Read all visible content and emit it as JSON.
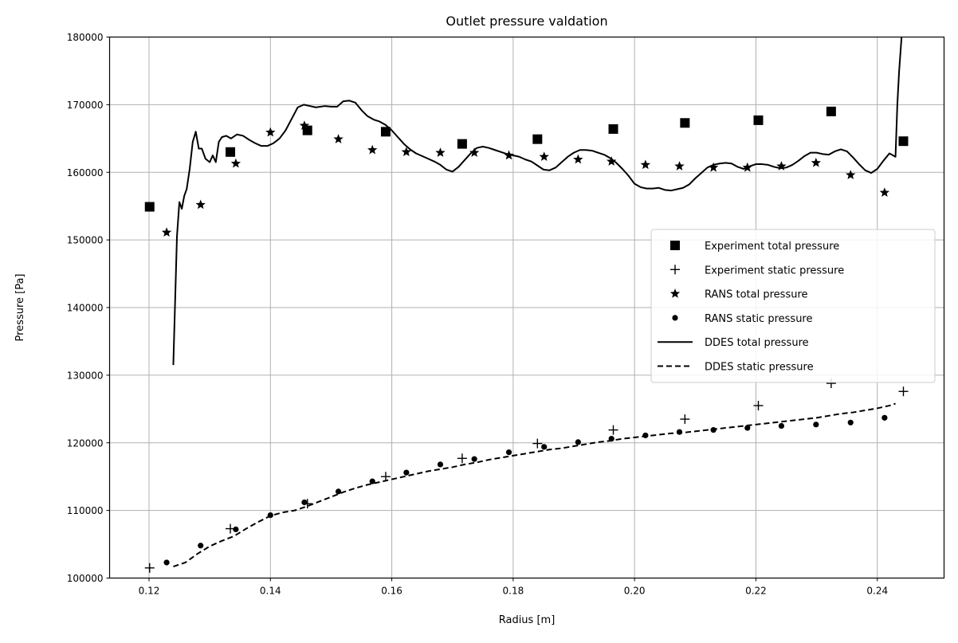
{
  "chart_data": {
    "type": "line",
    "title": "Outlet pressure valdation",
    "xlabel": "Radius [m]",
    "ylabel": "Pressure [Pa]",
    "xlim": [
      0.1135,
      0.251
    ],
    "ylim": [
      100000,
      180000
    ],
    "xticks": [
      0.12,
      0.14,
      0.16,
      0.18,
      0.2,
      0.22,
      0.24
    ],
    "xtick_labels": [
      "0.12",
      "0.14",
      "0.16",
      "0.18",
      "0.20",
      "0.22",
      "0.24"
    ],
    "yticks": [
      100000,
      110000,
      120000,
      130000,
      140000,
      150000,
      160000,
      170000,
      180000
    ],
    "ytick_labels": [
      "100000",
      "110000",
      "120000",
      "130000",
      "140000",
      "150000",
      "160000",
      "170000",
      "180000"
    ],
    "grid": true,
    "legend_position": "center-right",
    "series": [
      {
        "name": "Experiment total pressure",
        "marker": "square",
        "line": "none",
        "color": "#000000",
        "x": [
          0.1201,
          0.1334,
          0.1461,
          0.159,
          0.1716,
          0.184,
          0.1965,
          0.2083,
          0.2204,
          0.2324,
          0.2443
        ],
        "y": [
          154900,
          163000,
          166200,
          166000,
          164200,
          164900,
          166400,
          167300,
          167700,
          169000,
          164600
        ]
      },
      {
        "name": "Experiment static pressure",
        "marker": "plus",
        "line": "none",
        "color": "#000000",
        "x": [
          0.1201,
          0.1334,
          0.1461,
          0.159,
          0.1716,
          0.184,
          0.1965,
          0.2083,
          0.2204,
          0.2324,
          0.2443
        ],
        "y": [
          101500,
          107300,
          111000,
          115000,
          117700,
          119900,
          121900,
          123500,
          125500,
          128800,
          127600
        ]
      },
      {
        "name": "RANS total pressure",
        "marker": "star",
        "line": "none",
        "color": "#000000",
        "x": [
          0.1229,
          0.1285,
          0.1343,
          0.14,
          0.1456,
          0.1512,
          0.1568,
          0.1624,
          0.168,
          0.1736,
          0.1793,
          0.1851,
          0.1907,
          0.1962,
          0.2018,
          0.2074,
          0.213,
          0.2186,
          0.2242,
          0.2299,
          0.2356,
          0.2412
        ],
        "y": [
          151100,
          155200,
          161300,
          165900,
          166900,
          164900,
          163300,
          163000,
          162900,
          162900,
          162500,
          162300,
          161900,
          161600,
          161100,
          160900,
          160700,
          160700,
          160900,
          161400,
          159600,
          157000
        ]
      },
      {
        "name": "RANS static pressure",
        "marker": "dot",
        "line": "none",
        "color": "#000000",
        "x": [
          0.1229,
          0.1285,
          0.1343,
          0.14,
          0.1456,
          0.1512,
          0.1568,
          0.1624,
          0.168,
          0.1736,
          0.1793,
          0.1851,
          0.1907,
          0.1962,
          0.2018,
          0.2074,
          0.213,
          0.2186,
          0.2242,
          0.2299,
          0.2356,
          0.2412
        ],
        "y": [
          102300,
          104800,
          107200,
          109300,
          111200,
          112800,
          114300,
          115600,
          116800,
          117600,
          118600,
          119400,
          120100,
          120600,
          121100,
          121600,
          121900,
          122200,
          122500,
          122700,
          123000,
          123700
        ]
      },
      {
        "name": "DDES total pressure",
        "marker": "none",
        "line": "solid",
        "color": "#000000",
        "x": [
          0.124,
          0.1243,
          0.1246,
          0.125,
          0.1254,
          0.1258,
          0.1262,
          0.1267,
          0.1272,
          0.1277,
          0.1282,
          0.1287,
          0.1293,
          0.13,
          0.1305,
          0.131,
          0.1315,
          0.132,
          0.1327,
          0.1335,
          0.1345,
          0.1355,
          0.1365,
          0.1375,
          0.1385,
          0.1395,
          0.1405,
          0.1415,
          0.1425,
          0.1435,
          0.1445,
          0.1455,
          0.1465,
          0.1475,
          0.149,
          0.15,
          0.151,
          0.152,
          0.153,
          0.154,
          0.155,
          0.156,
          0.157,
          0.158,
          0.159,
          0.16,
          0.161,
          0.162,
          0.163,
          0.164,
          0.165,
          0.166,
          0.167,
          0.168,
          0.169,
          0.17,
          0.171,
          0.172,
          0.173,
          0.174,
          0.175,
          0.176,
          0.177,
          0.178,
          0.179,
          0.18,
          0.181,
          0.182,
          0.183,
          0.184,
          0.185,
          0.186,
          0.187,
          0.188,
          0.189,
          0.19,
          0.191,
          0.192,
          0.193,
          0.194,
          0.195,
          0.196,
          0.197,
          0.198,
          0.199,
          0.2,
          0.201,
          0.202,
          0.203,
          0.204,
          0.205,
          0.206,
          0.207,
          0.208,
          0.209,
          0.21,
          0.211,
          0.212,
          0.213,
          0.214,
          0.215,
          0.216,
          0.217,
          0.218,
          0.219,
          0.22,
          0.221,
          0.222,
          0.223,
          0.224,
          0.225,
          0.226,
          0.227,
          0.228,
          0.229,
          0.23,
          0.231,
          0.232,
          0.233,
          0.234,
          0.235,
          0.236,
          0.237,
          0.238,
          0.239,
          0.24,
          0.241,
          0.242,
          0.243,
          0.2433,
          0.2436,
          0.244
        ],
        "y": [
          131500,
          141000,
          150500,
          155600,
          154600,
          156500,
          157500,
          160500,
          164500,
          166000,
          163500,
          163500,
          162000,
          161500,
          162500,
          161500,
          164500,
          165200,
          165400,
          165000,
          165600,
          165400,
          164800,
          164300,
          163900,
          163900,
          164300,
          165000,
          166200,
          167900,
          169600,
          170000,
          169800,
          169600,
          169800,
          169700,
          169700,
          170500,
          170600,
          170300,
          169200,
          168300,
          167800,
          167500,
          167000,
          166200,
          165200,
          164200,
          163400,
          162800,
          162400,
          162000,
          161600,
          161100,
          160400,
          160100,
          160800,
          161800,
          162800,
          163600,
          163800,
          163600,
          163300,
          163000,
          162700,
          162500,
          162300,
          161900,
          161600,
          161000,
          160400,
          160300,
          160700,
          161500,
          162300,
          162900,
          163300,
          163300,
          163200,
          162900,
          162600,
          162100,
          161400,
          160500,
          159500,
          158300,
          157800,
          157600,
          157600,
          157700,
          157400,
          157300,
          157500,
          157700,
          158200,
          159100,
          159900,
          160700,
          161100,
          161300,
          161400,
          161300,
          160800,
          160500,
          160900,
          161200,
          161200,
          161100,
          160800,
          160600,
          160700,
          161100,
          161700,
          162400,
          162900,
          162900,
          162700,
          162600,
          163100,
          163400,
          163100,
          162200,
          161200,
          160300,
          159900,
          160500,
          161700,
          162800,
          162300,
          170000,
          175000,
          180000
        ]
      },
      {
        "name": "DDES static pressure",
        "marker": "none",
        "line": "dashed",
        "color": "#000000",
        "x": [
          0.124,
          0.126,
          0.128,
          0.13,
          0.132,
          0.134,
          0.136,
          0.138,
          0.14,
          0.142,
          0.144,
          0.146,
          0.148,
          0.15,
          0.152,
          0.154,
          0.156,
          0.158,
          0.16,
          0.162,
          0.164,
          0.166,
          0.168,
          0.17,
          0.172,
          0.174,
          0.176,
          0.178,
          0.18,
          0.182,
          0.184,
          0.186,
          0.188,
          0.19,
          0.192,
          0.194,
          0.196,
          0.198,
          0.2,
          0.202,
          0.204,
          0.206,
          0.208,
          0.21,
          0.212,
          0.214,
          0.216,
          0.218,
          0.22,
          0.222,
          0.224,
          0.226,
          0.228,
          0.23,
          0.232,
          0.234,
          0.236,
          0.238,
          0.24,
          0.242,
          0.243
        ],
        "y": [
          101700,
          102300,
          103600,
          104700,
          105500,
          106200,
          107300,
          108300,
          109200,
          109700,
          110000,
          110600,
          111300,
          112000,
          112700,
          113300,
          113800,
          114200,
          114600,
          115000,
          115400,
          115800,
          116100,
          116400,
          116800,
          117100,
          117500,
          117800,
          118100,
          118400,
          118700,
          119000,
          119200,
          119500,
          119800,
          120100,
          120300,
          120600,
          120800,
          121000,
          121200,
          121400,
          121500,
          121700,
          121900,
          122100,
          122300,
          122500,
          122700,
          122900,
          123100,
          123300,
          123500,
          123700,
          124000,
          124300,
          124500,
          124800,
          125100,
          125500,
          125800
        ]
      }
    ]
  }
}
